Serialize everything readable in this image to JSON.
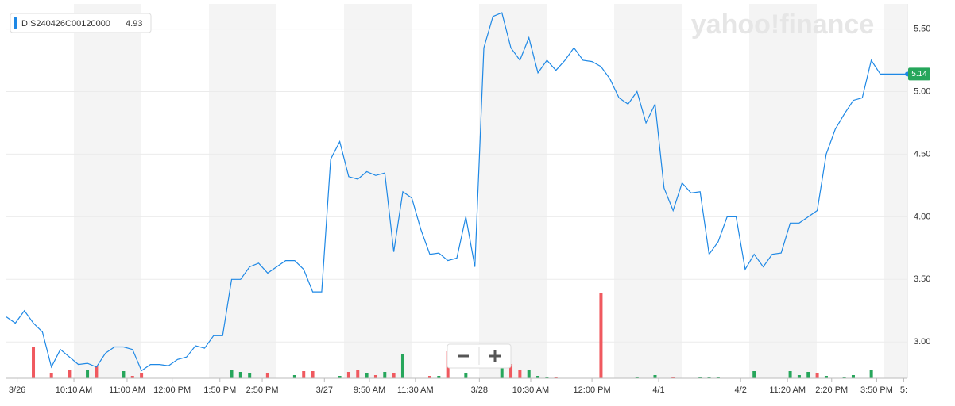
{
  "chart_data": {
    "type": "line",
    "watermark": "yahoo!finance",
    "legend_label": "DIS240426C00120000",
    "legend_value": 4.93,
    "current_value": 5.14,
    "xlim": [
      0,
      100
    ],
    "ylim": [
      2.71,
      5.7
    ],
    "yticks": [
      {
        "value": 3.0,
        "label": "3.00"
      },
      {
        "value": 3.5,
        "label": "3.50"
      },
      {
        "value": 4.0,
        "label": "4.00"
      },
      {
        "value": 4.5,
        "label": "4.50"
      },
      {
        "value": 5.0,
        "label": "5.00"
      },
      {
        "value": 5.5,
        "label": "5.50"
      }
    ],
    "xticks": [
      {
        "value": 1.2,
        "label": "3/26"
      },
      {
        "value": 7.5,
        "label": "10:10 AM"
      },
      {
        "value": 13.4,
        "label": "11:00 AM"
      },
      {
        "value": 18.4,
        "label": "12:00 PM"
      },
      {
        "value": 23.7,
        "label": "1:50 PM"
      },
      {
        "value": 28.4,
        "label": "2:50 PM"
      },
      {
        "value": 35.3,
        "label": "3/27"
      },
      {
        "value": 40.3,
        "label": "9:50 AM"
      },
      {
        "value": 45.4,
        "label": "11:30 AM"
      },
      {
        "value": 52.5,
        "label": "3/28"
      },
      {
        "value": 58.2,
        "label": "10:30 AM"
      },
      {
        "value": 65,
        "label": "12:00 PM"
      },
      {
        "value": 72.4,
        "label": "4/1"
      },
      {
        "value": 81.5,
        "label": "4/2"
      },
      {
        "value": 86.7,
        "label": "11:20 AM"
      },
      {
        "value": 91.6,
        "label": "2:20 PM"
      },
      {
        "value": 96.6,
        "label": "3:50 PM"
      },
      {
        "value": 99.6,
        "label": "5:"
      }
    ],
    "grid": true,
    "series": [
      {
        "color": "#1e88e5",
        "values": [
          3.2,
          3.15,
          3.25,
          3.15,
          3.08,
          2.8,
          2.94,
          2.88,
          2.82,
          2.83,
          2.8,
          2.91,
          2.96,
          2.96,
          2.94,
          2.77,
          2.82,
          2.82,
          2.81,
          2.86,
          2.88,
          2.97,
          2.95,
          3.05,
          3.05,
          3.5,
          3.5,
          3.6,
          3.63,
          3.55,
          3.6,
          3.65,
          3.65,
          3.58,
          3.4,
          3.4,
          4.46,
          4.6,
          4.32,
          4.3,
          4.36,
          4.33,
          4.35,
          3.72,
          4.2,
          4.15,
          3.9,
          3.7,
          3.71,
          3.65,
          3.67,
          4.0,
          3.6,
          5.35,
          5.6,
          5.63,
          5.35,
          5.25,
          5.43,
          5.15,
          5.25,
          5.17,
          5.25,
          5.35,
          5.25,
          5.24,
          5.2,
          5.1,
          4.95,
          4.9,
          5.0,
          4.75,
          4.9,
          4.23,
          4.05,
          4.27,
          4.19,
          4.2,
          3.7,
          3.8,
          4.0,
          4.0,
          3.58,
          3.7,
          3.6,
          3.7,
          3.71,
          3.95,
          3.95,
          4.0,
          4.05,
          4.5,
          4.7,
          4.82,
          4.93,
          4.95,
          5.25,
          5.14,
          5.14,
          5.14,
          5.14
        ]
      }
    ],
    "volume": {
      "ylim": [
        0,
        120
      ],
      "up_color": "#26a65b",
      "down_color": "#f0595f",
      "bars": [
        [
          3,
          40,
          0
        ],
        [
          5,
          6,
          0
        ],
        [
          7,
          11,
          0
        ],
        [
          9,
          11,
          1
        ],
        [
          10,
          15,
          0
        ],
        [
          13,
          9,
          1
        ],
        [
          14,
          3,
          0
        ],
        [
          15,
          6,
          0
        ],
        [
          25,
          11,
          1
        ],
        [
          26,
          8,
          1
        ],
        [
          27,
          6,
          1
        ],
        [
          29,
          6,
          0
        ],
        [
          32,
          4,
          1
        ],
        [
          33,
          9,
          0
        ],
        [
          34,
          9,
          0
        ],
        [
          37,
          3,
          1
        ],
        [
          38,
          8,
          0
        ],
        [
          39,
          11,
          0
        ],
        [
          40,
          6,
          1
        ],
        [
          41,
          4,
          0
        ],
        [
          42,
          8,
          1
        ],
        [
          43,
          6,
          0
        ],
        [
          44,
          30,
          1
        ],
        [
          47,
          3,
          0
        ],
        [
          48,
          3,
          1
        ],
        [
          49,
          34,
          0
        ],
        [
          51,
          6,
          1
        ],
        [
          55,
          14,
          1
        ],
        [
          56,
          18,
          0
        ],
        [
          57,
          11,
          0
        ],
        [
          58,
          11,
          1
        ],
        [
          59,
          3,
          1
        ],
        [
          60,
          2,
          1
        ],
        [
          61,
          2,
          0
        ],
        [
          66,
          107,
          0
        ],
        [
          70,
          2,
          1
        ],
        [
          72,
          4,
          1
        ],
        [
          74,
          2,
          0
        ],
        [
          77,
          2,
          1
        ],
        [
          78,
          2,
          1
        ],
        [
          79,
          2,
          1
        ],
        [
          83,
          9,
          1
        ],
        [
          87,
          9,
          1
        ],
        [
          88,
          4,
          1
        ],
        [
          89,
          8,
          1
        ],
        [
          90,
          6,
          0
        ],
        [
          91,
          3,
          1
        ],
        [
          93,
          2,
          1
        ],
        [
          94,
          4,
          1
        ],
        [
          96,
          11,
          1
        ]
      ]
    }
  }
}
